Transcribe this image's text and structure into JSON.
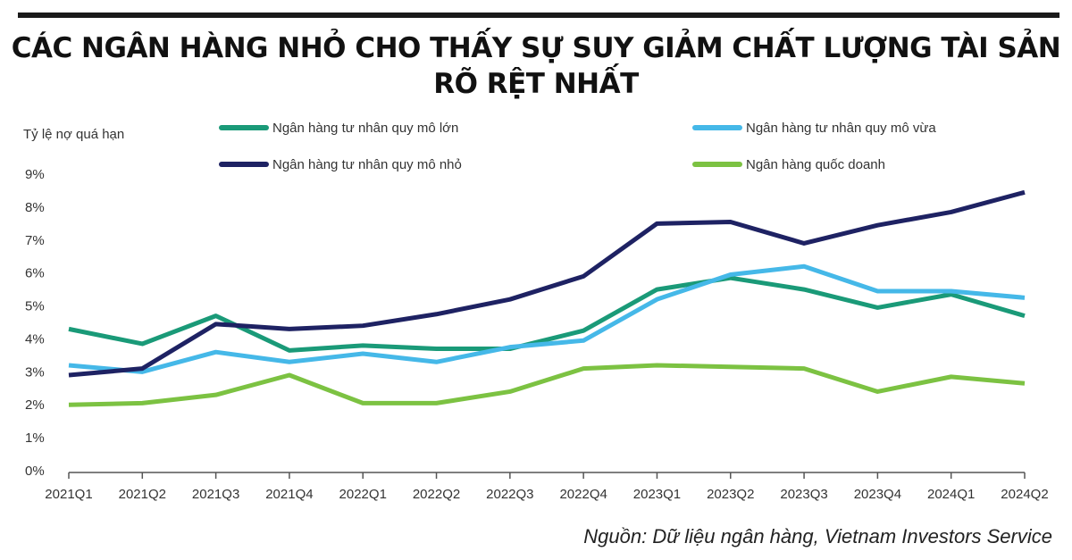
{
  "chart_data": {
    "type": "line",
    "title": "CÁC NGÂN HÀNG NHỎ CHO THẤY SỰ SUY GIẢM CHẤT LƯỢNG TÀI SẢN RÕ RỆT NHẤT",
    "title_lines": [
      "CÁC NGÂN HÀNG NHỎ CHO THẤY SỰ SUY GIẢM CHẤT LƯỢNG TÀI SẢN",
      "RÕ RỆT NHẤT"
    ],
    "ylabel": "Tỷ lệ nợ quá hạn",
    "xlabel": "",
    "ylim": [
      0,
      9
    ],
    "yticks": [
      "0%",
      "1%",
      "2%",
      "3%",
      "4%",
      "5%",
      "6%",
      "7%",
      "8%",
      "9%"
    ],
    "grid": false,
    "legend_position": "top",
    "categories": [
      "2021Q1",
      "2021Q2",
      "2021Q3",
      "2021Q4",
      "2022Q1",
      "2022Q2",
      "2022Q3",
      "2022Q4",
      "2023Q1",
      "2023Q2",
      "2023Q3",
      "2023Q4",
      "2024Q1",
      "2024Q2"
    ],
    "series": [
      {
        "name": "Ngân hàng tư nhân quy mô lớn",
        "color": "#1a9a78",
        "values": [
          4.3,
          3.85,
          4.7,
          3.65,
          3.8,
          3.7,
          3.7,
          4.25,
          5.5,
          5.85,
          5.5,
          4.95,
          5.35,
          4.7
        ]
      },
      {
        "name": "Ngân hàng tư nhân quy mô vừa",
        "color": "#45b8e8",
        "values": [
          3.2,
          3.0,
          3.6,
          3.3,
          3.55,
          3.3,
          3.75,
          3.95,
          5.2,
          5.95,
          6.2,
          5.45,
          5.45,
          5.25
        ]
      },
      {
        "name": "Ngân hàng tư nhân quy mô nhỏ",
        "color": "#1e2263",
        "values": [
          2.9,
          3.1,
          4.45,
          4.3,
          4.4,
          4.75,
          5.2,
          5.9,
          7.5,
          7.55,
          6.9,
          7.45,
          7.85,
          8.45
        ]
      },
      {
        "name": "Ngân hàng quốc doanh",
        "color": "#7cc242",
        "values": [
          2.0,
          2.05,
          2.3,
          2.9,
          2.05,
          2.05,
          2.4,
          3.1,
          3.2,
          3.15,
          3.1,
          2.4,
          2.85,
          2.65
        ]
      }
    ],
    "source": "Nguồn: Dữ liệu ngân hàng, Vietnam Investors Service"
  }
}
